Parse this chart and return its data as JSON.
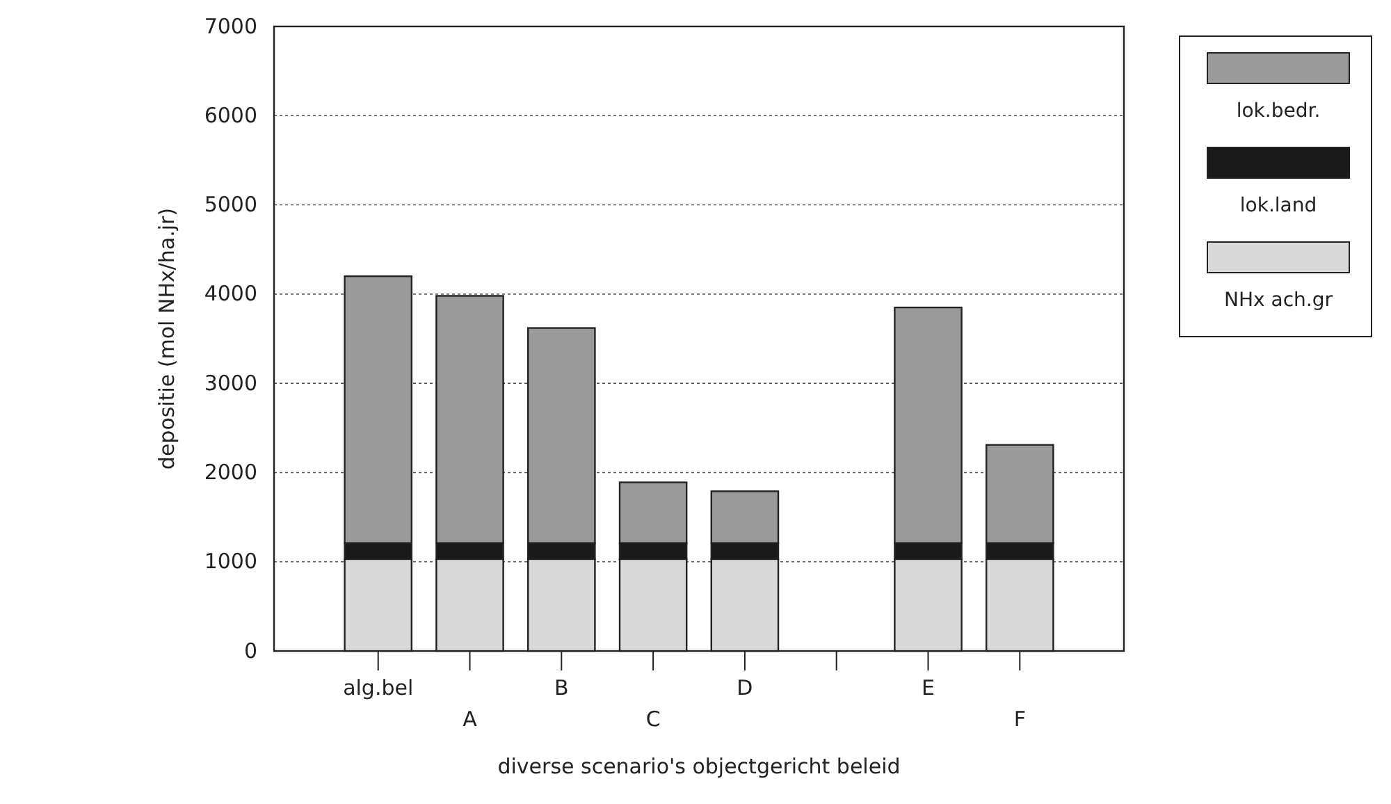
{
  "chart_data": {
    "type": "bar",
    "stacked": true,
    "xlabel": "diverse scenario's objectgericht beleid",
    "ylabel": "depositie (mol NHx/ha.jr)",
    "categories": [
      "alg.bel",
      "A",
      "B",
      "C",
      "D",
      null,
      "E",
      "F"
    ],
    "series": [
      {
        "name": "NHx ach.gr",
        "color": "#d9d9d9",
        "values": [
          1030,
          1030,
          1030,
          1030,
          1030,
          0,
          1030,
          1030
        ]
      },
      {
        "name": "lok.land",
        "color": "#1a1a1a",
        "values": [
          180,
          180,
          180,
          180,
          180,
          0,
          180,
          180
        ]
      },
      {
        "name": "lok.bedr.",
        "color": "#9a9a9a",
        "values": [
          2990,
          2770,
          2410,
          680,
          580,
          0,
          2640,
          1100
        ]
      }
    ],
    "ylim": [
      0,
      7000
    ],
    "yticks": [
      0,
      1000,
      2000,
      3000,
      4000,
      5000,
      6000,
      7000
    ],
    "grid": "y",
    "legend": "top right"
  }
}
